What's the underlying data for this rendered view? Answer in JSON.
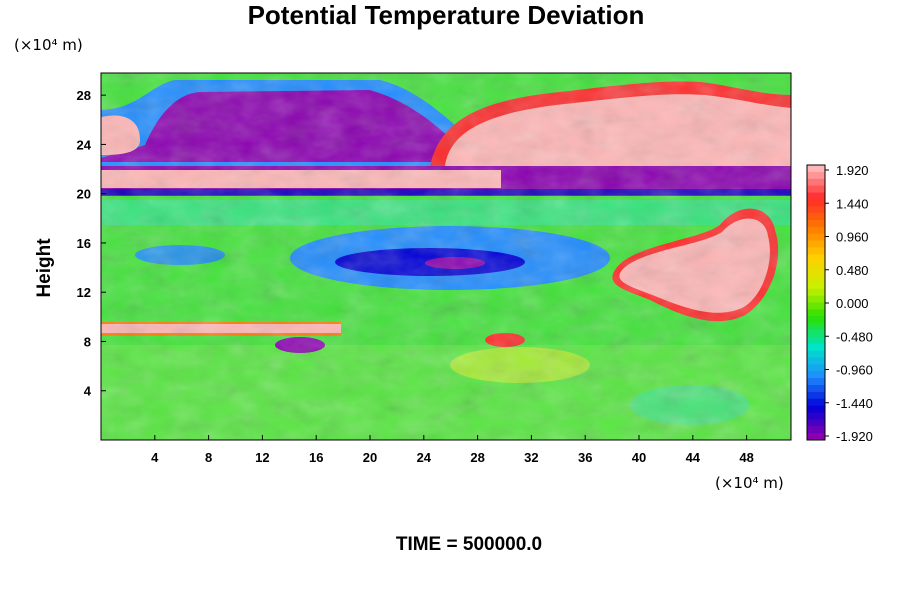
{
  "chart_data": {
    "type": "heatmap",
    "title": "Potential Temperature Deviation",
    "ylabel": "Height",
    "y_unit": "(×10⁴ m)",
    "x_unit": "(×10⁴ m)",
    "time_label": "TIME = 500000.0",
    "x_ticks": [
      "4",
      "8",
      "12",
      "16",
      "20",
      "24",
      "28",
      "32",
      "36",
      "40",
      "44",
      "48"
    ],
    "y_ticks": [
      "4",
      "8",
      "12",
      "16",
      "20",
      "24",
      "28"
    ],
    "xlim": [
      0,
      51.3
    ],
    "ylim": [
      0,
      29.8
    ],
    "colorbar": {
      "labels": [
        "1.920",
        "1.440",
        "0.960",
        "0.480",
        "0.000",
        "-0.480",
        "-0.960",
        "-1.440",
        "-1.920"
      ],
      "min": -1.92,
      "max": 1.92,
      "colors_high_to_low": [
        "#ffb6b6",
        "#ff2a2a",
        "#ff7a00",
        "#ffd000",
        "#c8f000",
        "#29e000",
        "#00e4c8",
        "#1f8cff",
        "#0000d8",
        "#8a00b0"
      ]
    },
    "colors": {
      "high": "#ffb6b6",
      "low": "#8a00b0",
      "background": "#42e23a"
    }
  }
}
